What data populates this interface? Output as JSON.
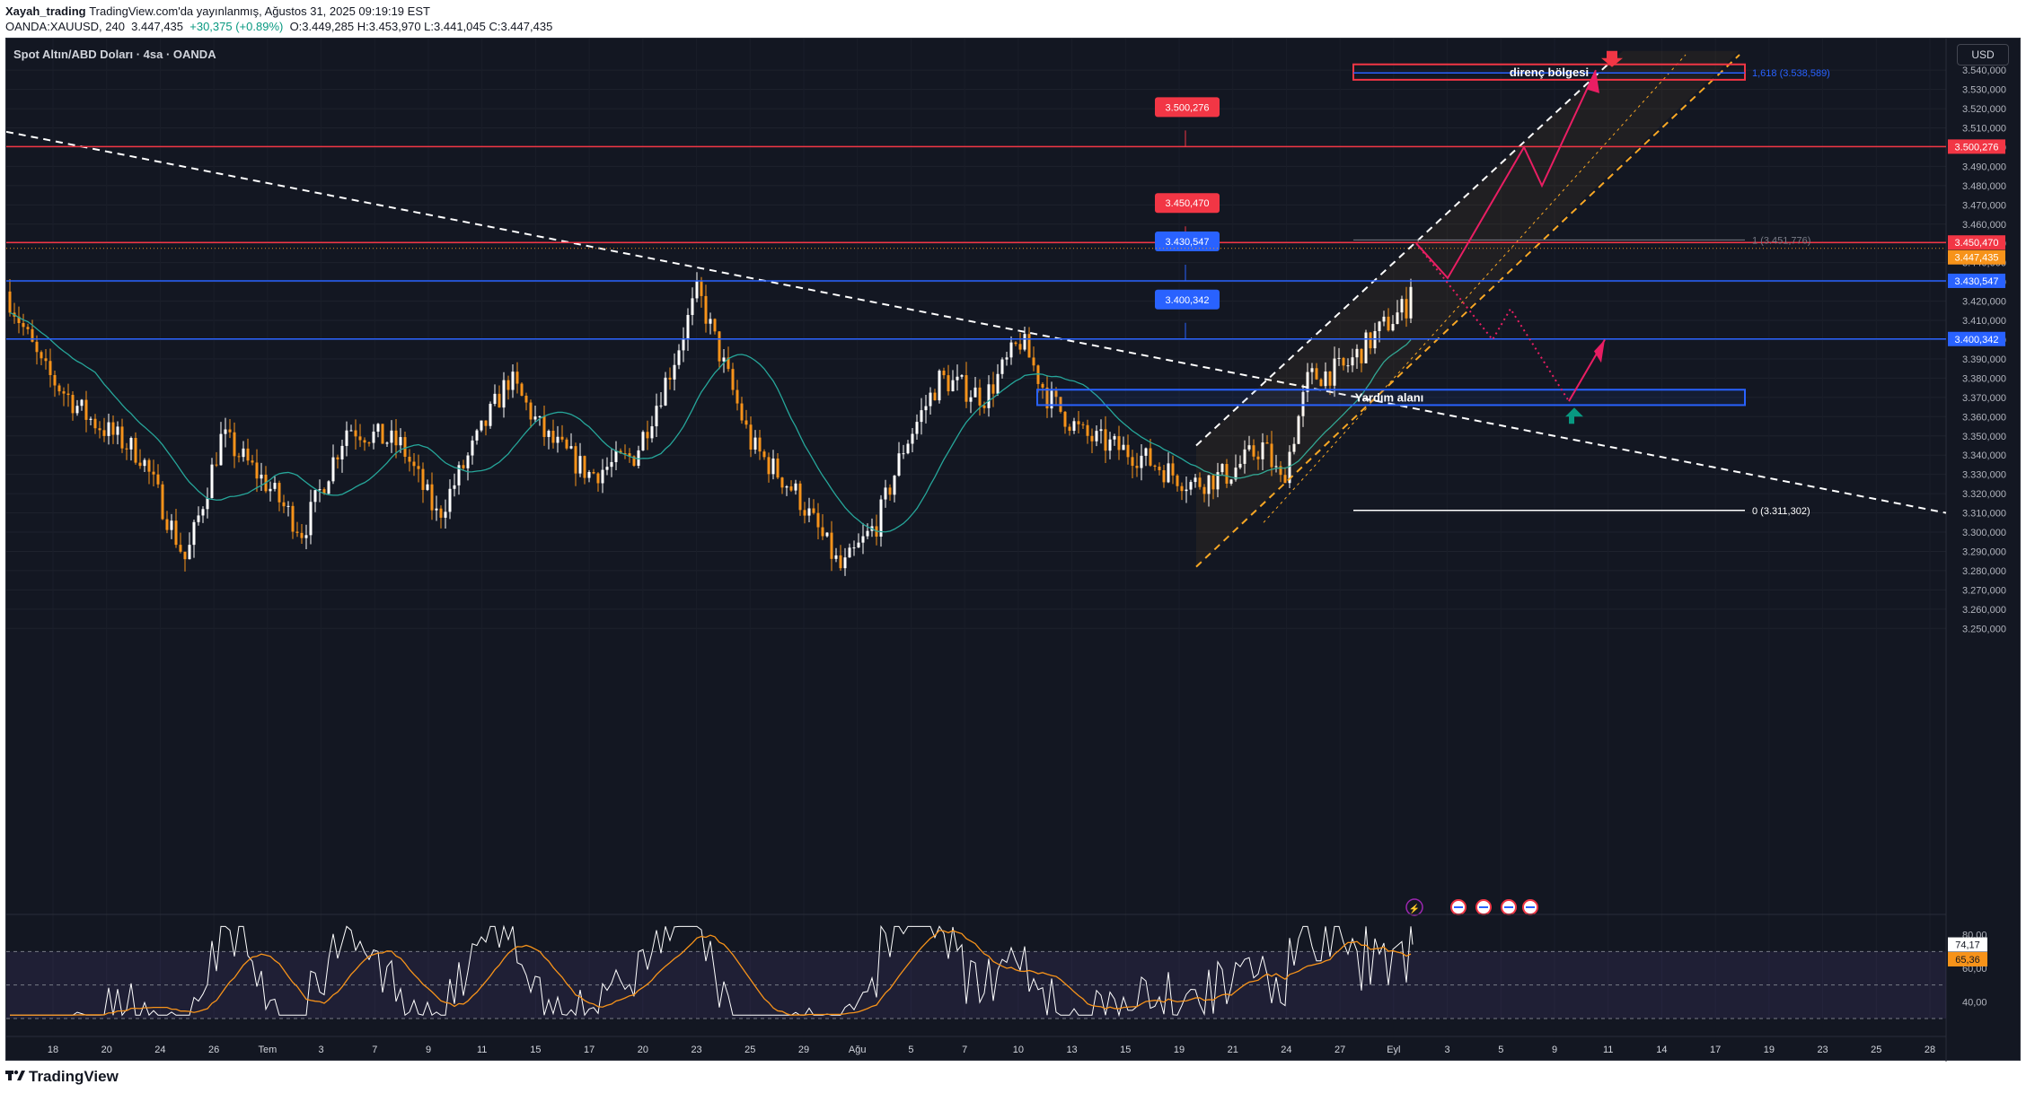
{
  "header": {
    "author": "Xayah_trading",
    "published": "TradingView.com'da yayınlanmış, Ağustos 31, 2025 09:19:19 EST",
    "symbol": "OANDA:XAUUSD, 240",
    "price": "3.447,435",
    "change": "+30,375 (+0.89%)",
    "ohlc": "O:3.449,285 H:3.453,970 L:3.441,045 C:3.447,435"
  },
  "legend": "Spot Altın/ABD Doları · 4sa · OANDA",
  "currency_button": "USD",
  "footer_brand": "TradingView",
  "colors": {
    "background": "#131722",
    "up": "#ffffff",
    "down": "#f7931a",
    "ma": "#26a69a",
    "resistance": "#f23645",
    "support": "#2962ff",
    "arrow": "#e91e63",
    "channel": "#f9a825"
  },
  "chart_data": {
    "type": "candlestick",
    "y_ticks": [
      "3.540,000",
      "3.530,000",
      "3.520,000",
      "3.510,000",
      "3.500,000",
      "3.490,000",
      "3.480,000",
      "3.470,000",
      "3.460,000",
      "3.450,000",
      "3.440,000",
      "3.430,000",
      "3.420,000",
      "3.410,000",
      "3.400,000",
      "3.390,000",
      "3.380,000",
      "3.370,000",
      "3.360,000",
      "3.350,000",
      "3.340,000",
      "3.330,000",
      "3.320,000",
      "3.310,000",
      "3.300,000",
      "3.290,000",
      "3.280,000",
      "3.270,000",
      "3.260,000",
      "3.250,000"
    ],
    "x_ticks": [
      "18",
      "20",
      "24",
      "26",
      "Tem",
      "3",
      "7",
      "9",
      "11",
      "15",
      "17",
      "20",
      "23",
      "25",
      "29",
      "Ağu",
      "5",
      "7",
      "10",
      "13",
      "15",
      "19",
      "21",
      "24",
      "27",
      "Eyl",
      "3",
      "5",
      "9",
      "11",
      "14",
      "17",
      "19",
      "23",
      "25",
      "28"
    ],
    "ylim": [
      3245,
      3548
    ],
    "levels": [
      {
        "label": "3.500,276",
        "value": 3500.276,
        "color": "#f23645"
      },
      {
        "label": "3.450,470",
        "value": 3450.47,
        "color": "#f23645"
      },
      {
        "label": "3.430,547",
        "value": 3430.547,
        "color": "#2962ff"
      },
      {
        "label": "3.400,342",
        "value": 3400.342,
        "color": "#2962ff"
      }
    ],
    "last_price": {
      "label": "3.447,435",
      "value": 3447.435
    },
    "fib": [
      {
        "label": "1 (3.451,776)",
        "value": 3451.776
      },
      {
        "label": "1,618 (3.538,589)",
        "value": 3538.589
      },
      {
        "label": "0 (3.311,302)",
        "value": 3311.302
      }
    ],
    "zones": [
      {
        "label": "direnç bölgesi",
        "top": 3543,
        "bottom": 3535
      },
      {
        "label": "Yardım alanı",
        "top": 3374,
        "bottom": 3366
      }
    ],
    "rsi": {
      "ticks": [
        "80,00",
        "60,00",
        "40,00"
      ],
      "value_label": "74,17",
      "ma_label": "65,36",
      "value": 74.17,
      "ma": 65.36
    }
  }
}
